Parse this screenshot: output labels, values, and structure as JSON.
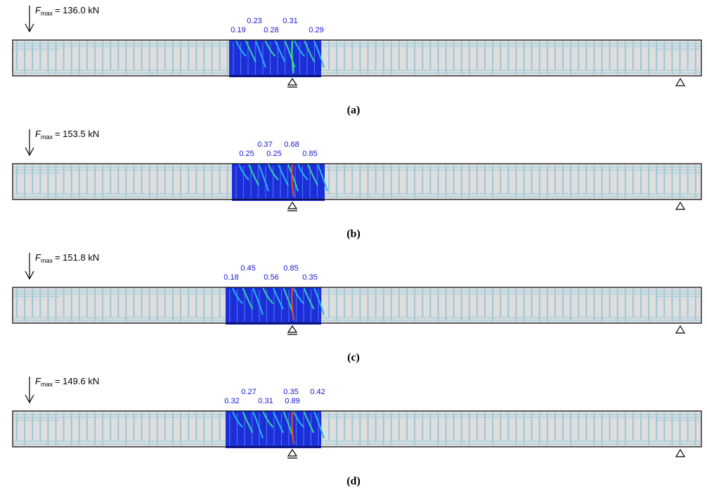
{
  "panels": [
    {
      "force": {
        "symbol": "F",
        "subscript": "max",
        "value": "= 136.0 kN"
      },
      "crack_widths_top": [
        "0.23",
        "0.31"
      ],
      "crack_widths_bottom": [
        "0.19",
        "0.28",
        "0.29"
      ],
      "caption": "(a)"
    },
    {
      "force": {
        "symbol": "F",
        "subscript": "max",
        "value": "= 153.5 kN"
      },
      "crack_widths_top": [
        "0.37",
        "0.68"
      ],
      "crack_widths_bottom": [
        "0.25",
        "0.25",
        "0.85"
      ],
      "caption": "(b)"
    },
    {
      "force": {
        "symbol": "F",
        "subscript": "max",
        "value": "= 151.8 kN"
      },
      "crack_widths_top": [
        "0.45",
        "0.85"
      ],
      "crack_widths_bottom": [
        "0.18",
        "0.56",
        "0.35"
      ],
      "caption": "(c)"
    },
    {
      "force": {
        "symbol": "F",
        "subscript": "max",
        "value": "= 149.6 kN"
      },
      "crack_widths_top": [
        "0.27",
        "0.35",
        "0.42"
      ],
      "crack_widths_bottom": [
        "0.32",
        "0.31",
        "0.89"
      ],
      "caption": "(d)"
    }
  ]
}
